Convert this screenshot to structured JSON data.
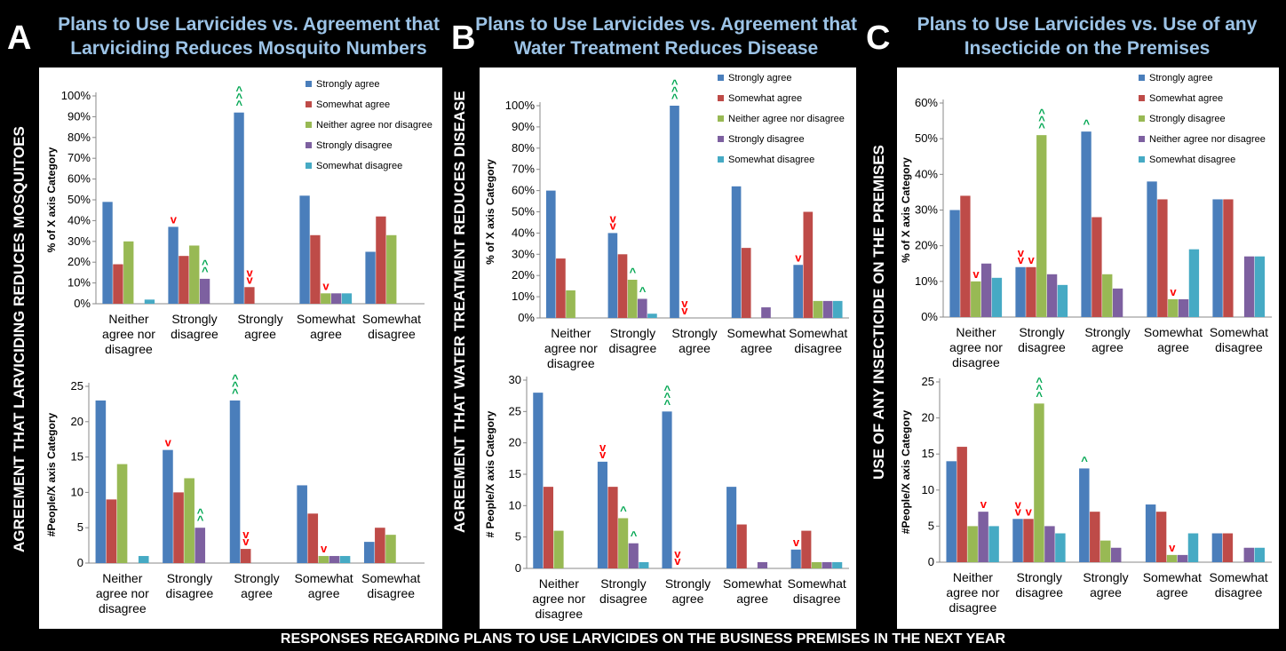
{
  "footer": "RESPONSES REGARDING PLANS TO USE LARVICIDES ON THE  BUSINESS PREMISES IN THE NEXT YEAR",
  "colors": {
    "blue": "#4a7ebb",
    "red": "#be4b48",
    "green": "#98b954",
    "purple": "#7d60a0",
    "cyan": "#46aac4",
    "up_marker": "#00a651",
    "down_marker": "#ff0000"
  },
  "panels": [
    {
      "letter": "A",
      "title_line1": "Plans to Use Larvicides vs. Agreement that",
      "title_line2": "Larviciding Reduces Mosquito Numbers",
      "side_label": "AGREEMENT THAT LARVICIDING REDUCES MOSQUITOES"
    },
    {
      "letter": "B",
      "title_line1": "Plans to Use Larvicides vs. Agreement that",
      "title_line2": "Water Treatment Reduces Disease",
      "side_label": "AGREEMENT THAT WATER TREATMENT REDUCES DISEASE"
    },
    {
      "letter": "C",
      "title_line1": "Plans to Use Larvicides vs. Use of any",
      "title_line2": "Insecticide on the Premises",
      "side_label": "USE OF  ANY INSECTICIDE ON THE PREMISES"
    }
  ],
  "chart_data": [
    {
      "id": "A-pct",
      "type": "bar",
      "ylabel": "% of X axis Category",
      "percent": true,
      "ylim": [
        0,
        100
      ],
      "ticks": [
        0,
        10,
        20,
        30,
        40,
        50,
        60,
        70,
        80,
        90,
        100
      ],
      "categories": [
        "Neither agree nor disagree",
        "Strongly disagree",
        "Strongly agree",
        "Somewhat agree",
        "Somewhat disagree"
      ],
      "series": [
        {
          "name": "Strongly agree",
          "color": "#4a7ebb",
          "values": [
            49,
            37,
            92,
            52,
            25
          ]
        },
        {
          "name": "Somewhat agree",
          "color": "#be4b48",
          "values": [
            19,
            23,
            8,
            33,
            42
          ]
        },
        {
          "name": "Neither agree nor disagree",
          "color": "#98b954",
          "values": [
            30,
            28,
            0,
            5,
            33
          ]
        },
        {
          "name": "Strongly disagree",
          "color": "#7d60a0",
          "values": [
            0,
            12,
            0,
            5,
            0
          ]
        },
        {
          "name": "Somewhat disagree",
          "color": "#46aac4",
          "values": [
            2,
            0,
            0,
            5,
            0
          ]
        }
      ],
      "legend": "top-right",
      "annotations": [
        {
          "cat": 1,
          "series": 0,
          "text": "v",
          "color": "#ff0000"
        },
        {
          "cat": 1,
          "series": 3,
          "text": "^^",
          "color": "#00a651"
        },
        {
          "cat": 2,
          "series": 0,
          "text": "^^^",
          "color": "#00a651"
        },
        {
          "cat": 2,
          "series": 1,
          "text": "vv",
          "color": "#ff0000"
        },
        {
          "cat": 3,
          "series": 2,
          "text": "v",
          "color": "#ff0000"
        }
      ]
    },
    {
      "id": "A-count",
      "type": "bar",
      "ylabel": "#People/X axis Category",
      "percent": false,
      "ylim": [
        0,
        25
      ],
      "ticks": [
        0,
        5,
        10,
        15,
        20,
        25
      ],
      "categories": [
        "Neither agree nor disagree",
        "Strongly disagree",
        "Strongly agree",
        "Somewhat agree",
        "Somewhat disagree"
      ],
      "series": [
        {
          "color": "#4a7ebb",
          "values": [
            23,
            16,
            23,
            11,
            3
          ]
        },
        {
          "color": "#be4b48",
          "values": [
            9,
            10,
            2,
            7,
            5
          ]
        },
        {
          "color": "#98b954",
          "values": [
            14,
            12,
            0,
            1,
            4
          ]
        },
        {
          "color": "#7d60a0",
          "values": [
            0,
            5,
            0,
            1,
            0
          ]
        },
        {
          "color": "#46aac4",
          "values": [
            1,
            0,
            0,
            1,
            0
          ]
        }
      ],
      "annotations": [
        {
          "cat": 1,
          "series": 0,
          "text": "v",
          "color": "#ff0000"
        },
        {
          "cat": 1,
          "series": 3,
          "text": "^^",
          "color": "#00a651"
        },
        {
          "cat": 2,
          "series": 0,
          "text": "^^^",
          "color": "#00a651"
        },
        {
          "cat": 2,
          "series": 1,
          "text": "vv",
          "color": "#ff0000"
        },
        {
          "cat": 3,
          "series": 2,
          "text": "v",
          "color": "#ff0000"
        }
      ]
    },
    {
      "id": "B-pct",
      "type": "bar",
      "ylabel": "% of X axis  Category",
      "percent": true,
      "ylim": [
        0,
        100
      ],
      "ticks": [
        0,
        10,
        20,
        30,
        40,
        50,
        60,
        70,
        80,
        90,
        100
      ],
      "categories": [
        "Neither agree nor disagree",
        "Strongly disagree",
        "Strongly agree",
        "Somewhat agree",
        "Somewhat disagree"
      ],
      "series": [
        {
          "name": "Strongly agree",
          "color": "#4a7ebb",
          "values": [
            60,
            40,
            100,
            62,
            25
          ]
        },
        {
          "name": "Somewhat agree",
          "color": "#be4b48",
          "values": [
            28,
            30,
            0,
            33,
            50
          ]
        },
        {
          "name": "Neither agree nor disagree",
          "color": "#98b954",
          "values": [
            13,
            18,
            0,
            0,
            8
          ]
        },
        {
          "name": "Strongly disagree",
          "color": "#7d60a0",
          "values": [
            0,
            9,
            0,
            5,
            8
          ]
        },
        {
          "name": "Somewhat disagree",
          "color": "#46aac4",
          "values": [
            0,
            2,
            0,
            0,
            8
          ]
        }
      ],
      "legend": "top-right",
      "annotations": [
        {
          "cat": 1,
          "series": 0,
          "text": "vv",
          "color": "#ff0000"
        },
        {
          "cat": 1,
          "series": 2,
          "text": "^",
          "color": "#00a651"
        },
        {
          "cat": 1,
          "series": 3,
          "text": "^",
          "color": "#00a651"
        },
        {
          "cat": 2,
          "series": 0,
          "text": "^^^",
          "color": "#00a651"
        },
        {
          "cat": 2,
          "series": 1,
          "text": "vv",
          "color": "#ff0000"
        },
        {
          "cat": 4,
          "series": 0,
          "text": "v",
          "color": "#ff0000"
        }
      ]
    },
    {
      "id": "B-count",
      "type": "bar",
      "ylabel": "# People/X axis Category",
      "percent": false,
      "ylim": [
        0,
        30
      ],
      "ticks": [
        0,
        5,
        10,
        15,
        20,
        25,
        30
      ],
      "categories": [
        "Neither agree nor disagree",
        "Strongly disagree",
        "Strongly agree",
        "Somewhat agree",
        "Somewhat disagree"
      ],
      "series": [
        {
          "color": "#4a7ebb",
          "values": [
            28,
            17,
            25,
            13,
            3
          ]
        },
        {
          "color": "#be4b48",
          "values": [
            13,
            13,
            0,
            7,
            6
          ]
        },
        {
          "color": "#98b954",
          "values": [
            6,
            8,
            0,
            0,
            1
          ]
        },
        {
          "color": "#7d60a0",
          "values": [
            0,
            4,
            0,
            1,
            1
          ]
        },
        {
          "color": "#46aac4",
          "values": [
            0,
            1,
            0,
            0,
            1
          ]
        }
      ],
      "annotations": [
        {
          "cat": 1,
          "series": 0,
          "text": "vv",
          "color": "#ff0000"
        },
        {
          "cat": 1,
          "series": 2,
          "text": "^",
          "color": "#00a651"
        },
        {
          "cat": 1,
          "series": 3,
          "text": "^",
          "color": "#00a651"
        },
        {
          "cat": 2,
          "series": 0,
          "text": "^^^",
          "color": "#00a651"
        },
        {
          "cat": 2,
          "series": 1,
          "text": "vv",
          "color": "#ff0000"
        },
        {
          "cat": 4,
          "series": 0,
          "text": "v",
          "color": "#ff0000"
        }
      ]
    },
    {
      "id": "C-pct",
      "type": "bar",
      "ylabel": "% of X axis Category",
      "percent": true,
      "ylim": [
        0,
        60
      ],
      "ticks": [
        0,
        10,
        20,
        30,
        40,
        50,
        60
      ],
      "categories": [
        "Neither agree nor disagree",
        "Strongly disagree",
        "Strongly agree",
        "Somewhat agree",
        "Somewhat disagree"
      ],
      "series": [
        {
          "name": "Strongly agree",
          "color": "#4a7ebb",
          "values": [
            30,
            14,
            52,
            38,
            33
          ]
        },
        {
          "name": "Somewhat agree",
          "color": "#be4b48",
          "values": [
            34,
            14,
            28,
            33,
            33
          ]
        },
        {
          "name": "Strongly disagree",
          "color": "#98b954",
          "values": [
            10,
            51,
            12,
            5,
            0
          ]
        },
        {
          "name": "Neither agree nor disagree",
          "color": "#7d60a0",
          "values": [
            15,
            12,
            8,
            5,
            17
          ]
        },
        {
          "name": "Somewhat disagree",
          "color": "#46aac4",
          "values": [
            11,
            9,
            0,
            19,
            17
          ]
        }
      ],
      "legend": "top-right",
      "annotations": [
        {
          "cat": 0,
          "series": 2,
          "text": "v",
          "color": "#ff0000"
        },
        {
          "cat": 1,
          "series": 0,
          "text": "vv",
          "color": "#ff0000"
        },
        {
          "cat": 1,
          "series": 1,
          "text": "v",
          "color": "#ff0000"
        },
        {
          "cat": 1,
          "series": 2,
          "text": "^^^",
          "color": "#00a651"
        },
        {
          "cat": 2,
          "series": 0,
          "text": "^",
          "color": "#00a651"
        },
        {
          "cat": 3,
          "series": 2,
          "text": "v",
          "color": "#ff0000"
        }
      ]
    },
    {
      "id": "C-count",
      "type": "bar",
      "ylabel": "#People/X axis Category",
      "percent": false,
      "ylim": [
        0,
        25
      ],
      "ticks": [
        0,
        5,
        10,
        15,
        20,
        25
      ],
      "categories": [
        "Neither agree nor disagree",
        "Strongly disagree",
        "Strongly agree",
        "Somewhat agree",
        "Somewhat disagree"
      ],
      "series": [
        {
          "color": "#4a7ebb",
          "values": [
            14,
            6,
            13,
            8,
            4
          ]
        },
        {
          "color": "#be4b48",
          "values": [
            16,
            6,
            7,
            7,
            4
          ]
        },
        {
          "color": "#98b954",
          "values": [
            5,
            22,
            3,
            1,
            0
          ]
        },
        {
          "color": "#7d60a0",
          "values": [
            7,
            5,
            2,
            1,
            2
          ]
        },
        {
          "color": "#46aac4",
          "values": [
            5,
            4,
            0,
            4,
            2
          ]
        }
      ],
      "annotations": [
        {
          "cat": 0,
          "series": 3,
          "text": "v",
          "color": "#ff0000"
        },
        {
          "cat": 1,
          "series": 0,
          "text": "vv",
          "color": "#ff0000"
        },
        {
          "cat": 1,
          "series": 1,
          "text": "v",
          "color": "#ff0000"
        },
        {
          "cat": 1,
          "series": 2,
          "text": "^^^",
          "color": "#00a651"
        },
        {
          "cat": 2,
          "series": 0,
          "text": "^",
          "color": "#00a651"
        },
        {
          "cat": 3,
          "series": 2,
          "text": "v",
          "color": "#ff0000"
        }
      ]
    }
  ]
}
